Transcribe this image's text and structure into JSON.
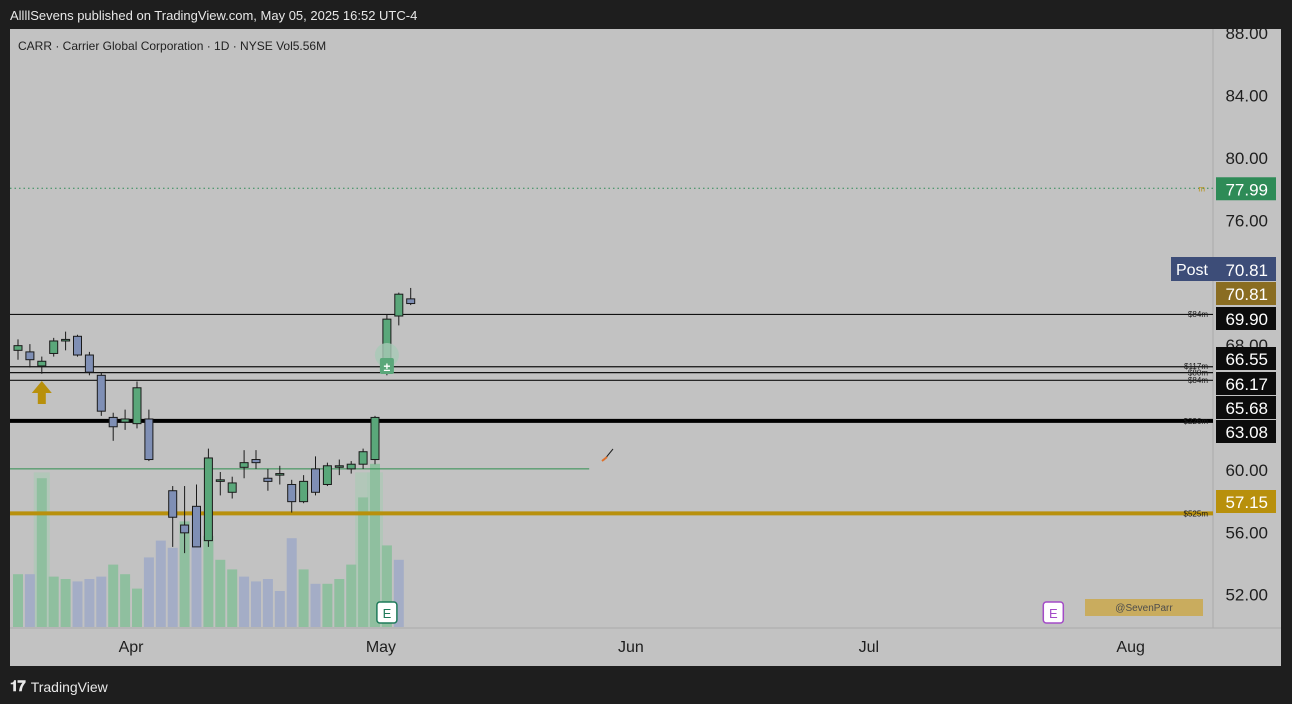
{
  "header": {
    "publish_line": "AllllSevens published on TradingView.com, May 05, 2025 16:52 UTC-4"
  },
  "legend": {
    "text": "CARR · Carrier Global Corporation · 1D · NYSE  Vol5.56M"
  },
  "footer": {
    "brand": "TradingView"
  },
  "watermark": "@SevenParr",
  "colors": {
    "background": "#c2c2c2",
    "up_candle": "#5aa77a",
    "down_candle": "#7f8fb5",
    "accent_gold": "#b8900c",
    "green_badge": "#2e8b57",
    "dark_badge": "#0c0c0c",
    "post_badge": "#3d4d78",
    "earnings": "#a34bc7"
  },
  "chart_data": {
    "type": "candlestick",
    "symbol": "CARR",
    "name": "Carrier Global Corporation",
    "interval": "1D",
    "exchange": "NYSE",
    "volume_label": "Vol5.56M",
    "y_axis": {
      "ticks": [
        88,
        84,
        80,
        76,
        68,
        60,
        56,
        52
      ],
      "tick_labels": [
        "88.00",
        "84.00",
        "80.00",
        "76.00",
        "68.00",
        "60.00",
        "56.00",
        "52.00"
      ],
      "range": [
        49.8,
        88.2
      ]
    },
    "x_axis": {
      "labels": [
        {
          "label": "Apr",
          "day": 9.5
        },
        {
          "label": "May",
          "day": 30.5
        },
        {
          "label": "Jun",
          "day": 51.5
        },
        {
          "label": "Jul",
          "day": 71.5
        },
        {
          "label": "Aug",
          "day": 93.5
        }
      ]
    },
    "candles": [
      {
        "day": 0,
        "o": 67.6,
        "h": 68.3,
        "l": 67.0,
        "c": 67.9
      },
      {
        "day": 1,
        "o": 67.5,
        "h": 68.0,
        "l": 66.5,
        "c": 67.0
      },
      {
        "day": 2,
        "o": 66.6,
        "h": 67.2,
        "l": 66.1,
        "c": 66.9
      },
      {
        "day": 3,
        "o": 67.4,
        "h": 68.4,
        "l": 67.2,
        "c": 68.2
      },
      {
        "day": 4,
        "o": 68.2,
        "h": 68.8,
        "l": 67.6,
        "c": 68.3
      },
      {
        "day": 5,
        "o": 68.5,
        "h": 68.6,
        "l": 67.2,
        "c": 67.3
      },
      {
        "day": 6,
        "o": 67.3,
        "h": 67.5,
        "l": 66.0,
        "c": 66.2
      },
      {
        "day": 7,
        "o": 66.0,
        "h": 66.2,
        "l": 63.4,
        "c": 63.7
      },
      {
        "day": 8,
        "o": 63.3,
        "h": 63.6,
        "l": 61.8,
        "c": 62.7
      },
      {
        "day": 9,
        "o": 63.0,
        "h": 63.8,
        "l": 62.5,
        "c": 63.2
      },
      {
        "day": 10,
        "o": 62.9,
        "h": 65.6,
        "l": 62.6,
        "c": 65.2
      },
      {
        "day": 11,
        "o": 63.2,
        "h": 63.8,
        "l": 60.5,
        "c": 60.6
      },
      {
        "day": 13,
        "o": 58.6,
        "h": 58.9,
        "l": 55.0,
        "c": 56.9
      },
      {
        "day": 14,
        "o": 56.4,
        "h": 58.9,
        "l": 54.6,
        "c": 55.9
      },
      {
        "day": 15,
        "o": 57.6,
        "h": 59.0,
        "l": 55.0,
        "c": 55.0
      },
      {
        "day": 16,
        "o": 55.4,
        "h": 61.3,
        "l": 55.0,
        "c": 60.7
      },
      {
        "day": 17,
        "o": 59.2,
        "h": 59.8,
        "l": 58.3,
        "c": 59.3
      },
      {
        "day": 18,
        "o": 58.5,
        "h": 59.5,
        "l": 58.1,
        "c": 59.1
      },
      {
        "day": 19,
        "o": 60.1,
        "h": 61.2,
        "l": 59.4,
        "c": 60.4
      },
      {
        "day": 20,
        "o": 60.6,
        "h": 61.2,
        "l": 60.0,
        "c": 60.4
      },
      {
        "day": 21,
        "o": 59.4,
        "h": 60.0,
        "l": 58.6,
        "c": 59.2
      },
      {
        "day": 22,
        "o": 59.6,
        "h": 60.2,
        "l": 59.0,
        "c": 59.7
      },
      {
        "day": 23,
        "o": 59.0,
        "h": 59.3,
        "l": 57.2,
        "c": 57.9
      },
      {
        "day": 24,
        "o": 57.9,
        "h": 59.6,
        "l": 57.8,
        "c": 59.2
      },
      {
        "day": 25,
        "o": 60.0,
        "h": 60.8,
        "l": 58.3,
        "c": 58.5
      },
      {
        "day": 26,
        "o": 59.0,
        "h": 60.4,
        "l": 58.9,
        "c": 60.2
      },
      {
        "day": 27,
        "o": 60.2,
        "h": 60.6,
        "l": 59.6,
        "c": 60.2
      },
      {
        "day": 28,
        "o": 60.0,
        "h": 60.5,
        "l": 59.7,
        "c": 60.3
      },
      {
        "day": 29,
        "o": 60.3,
        "h": 61.3,
        "l": 60.0,
        "c": 61.1
      },
      {
        "day": 30,
        "o": 60.6,
        "h": 63.4,
        "l": 60.3,
        "c": 63.3
      },
      {
        "day": 31,
        "o": 67.0,
        "h": 69.9,
        "l": 66.0,
        "c": 69.6
      },
      {
        "day": 32,
        "o": 69.8,
        "h": 71.3,
        "l": 69.2,
        "c": 71.2
      },
      {
        "day": 33,
        "o": 70.9,
        "h": 71.6,
        "l": 70.5,
        "c": 70.6
      }
    ],
    "volume": [
      {
        "day": 0,
        "v": 0.22,
        "up": true
      },
      {
        "day": 1,
        "v": 0.22,
        "up": false
      },
      {
        "day": 2,
        "v": 0.62,
        "up": true
      },
      {
        "day": 3,
        "v": 0.21,
        "up": true
      },
      {
        "day": 4,
        "v": 0.2,
        "up": true
      },
      {
        "day": 5,
        "v": 0.19,
        "up": false
      },
      {
        "day": 6,
        "v": 0.2,
        "up": false
      },
      {
        "day": 7,
        "v": 0.21,
        "up": false
      },
      {
        "day": 8,
        "v": 0.26,
        "up": true
      },
      {
        "day": 9,
        "v": 0.22,
        "up": true
      },
      {
        "day": 10,
        "v": 0.16,
        "up": true
      },
      {
        "day": 11,
        "v": 0.29,
        "up": false
      },
      {
        "day": 12,
        "v": 0.36,
        "up": false
      },
      {
        "day": 13,
        "v": 0.33,
        "up": false
      },
      {
        "day": 14,
        "v": 0.44,
        "up": true
      },
      {
        "day": 15,
        "v": 0.49,
        "up": false
      },
      {
        "day": 16,
        "v": 0.38,
        "up": true
      },
      {
        "day": 17,
        "v": 0.28,
        "up": true
      },
      {
        "day": 18,
        "v": 0.24,
        "up": true
      },
      {
        "day": 19,
        "v": 0.21,
        "up": false
      },
      {
        "day": 20,
        "v": 0.19,
        "up": false
      },
      {
        "day": 21,
        "v": 0.2,
        "up": false
      },
      {
        "day": 22,
        "v": 0.15,
        "up": false
      },
      {
        "day": 23,
        "v": 0.37,
        "up": false
      },
      {
        "day": 24,
        "v": 0.24,
        "up": true
      },
      {
        "day": 25,
        "v": 0.18,
        "up": false
      },
      {
        "day": 26,
        "v": 0.18,
        "up": true
      },
      {
        "day": 27,
        "v": 0.2,
        "up": true
      },
      {
        "day": 28,
        "v": 0.26,
        "up": true
      },
      {
        "day": 29,
        "v": 0.54,
        "up": true
      },
      {
        "day": 30,
        "v": 0.68,
        "up": true
      },
      {
        "day": 31,
        "v": 0.34,
        "up": true
      },
      {
        "day": 32,
        "v": 0.28,
        "up": false
      }
    ],
    "volume_highlights": [
      2,
      29,
      30
    ],
    "horizontal_levels": [
      {
        "price": 69.9,
        "label": "$84m",
        "badge": "69.90",
        "color": "#111111",
        "weight": "thin"
      },
      {
        "price": 66.55,
        "label": "$117m",
        "badge": "66.55",
        "color": "#111111",
        "weight": "thin"
      },
      {
        "price": 66.17,
        "label": "$80m",
        "badge": "66.17",
        "color": "#111111",
        "weight": "thin"
      },
      {
        "price": 65.68,
        "label": "$84m",
        "badge": "65.68",
        "color": "#111111",
        "weight": "thin"
      },
      {
        "price": 63.08,
        "label": "$226m",
        "badge": "63.08",
        "color": "#000000",
        "weight": "thick"
      },
      {
        "price": 57.15,
        "label": "$525m",
        "badge": "57.15",
        "color": "#b8900c",
        "weight": "thick"
      }
    ],
    "moving_line": {
      "price": 60.0,
      "color": "#2f8f4f",
      "to_day": 48
    },
    "target_line": {
      "price": 77.99,
      "badge": "77.99",
      "marker": "m"
    },
    "last_price": {
      "price": 70.81,
      "post_label": "Post",
      "post_badge": "70.81",
      "badge": "70.81"
    },
    "annotations": {
      "arrow_up_day": 2,
      "dividend_day": 31,
      "earnings_markers": [
        {
          "day": 31,
          "label": "E"
        },
        {
          "day": 87,
          "label": "E"
        }
      ]
    }
  }
}
